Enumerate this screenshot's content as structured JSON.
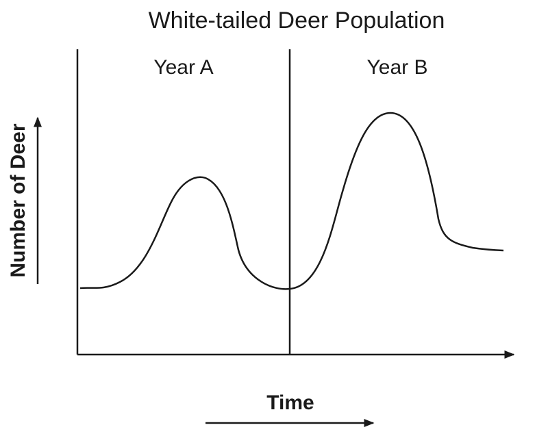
{
  "title": "White-tailed Deer Population",
  "panels": [
    {
      "label": "Year A"
    },
    {
      "label": "Year B"
    }
  ],
  "y_axis": {
    "label": "Number of Deer"
  },
  "x_axis": {
    "label": "Time"
  }
}
